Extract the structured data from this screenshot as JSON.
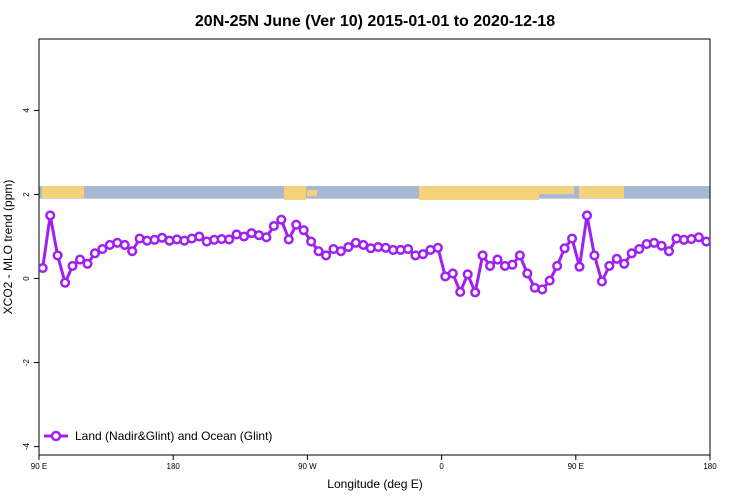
{
  "chart_data": {
    "type": "line",
    "title": "20N-25N June (Ver 10)   2015-01-01 to 2020-12-18",
    "xlabel": "Longitude (deg E)",
    "ylabel": "XCO2 - MLO trend (ppm)",
    "xlim": [
      90,
      450
    ],
    "ylim": [
      -4.2,
      5.7
    ],
    "x_ticks": [
      {
        "value": 90,
        "label": "90 E"
      },
      {
        "value": 162,
        "label": "180"
      },
      {
        "value": 234,
        "label": "90 W"
      },
      {
        "value": 306,
        "label": "0"
      },
      {
        "value": 378,
        "label": "90 E"
      },
      {
        "value": 450,
        "label": "180"
      }
    ],
    "y_ticks": [
      {
        "value": -4,
        "label": "-4"
      },
      {
        "value": -2,
        "label": "-2"
      },
      {
        "value": 0,
        "label": "0"
      },
      {
        "value": 2,
        "label": "2"
      },
      {
        "value": 4,
        "label": "4"
      }
    ],
    "map_band": {
      "ymin": 1.9,
      "ymax": 2.2,
      "ocean_color": "#a7b8d0",
      "land_color": "#f5d27a"
    },
    "legend_position": "bottom-left",
    "series": [
      {
        "name": "Land (Nadir&Glint) and Ocean (Glint)",
        "color": "#a020f0",
        "x": [
          92,
          96,
          100,
          104,
          108,
          112,
          116,
          120,
          124,
          128,
          132,
          136,
          140,
          144,
          148,
          152,
          156,
          160,
          164,
          168,
          172,
          176,
          180,
          184,
          188,
          192,
          196,
          200,
          204,
          208,
          212,
          216,
          220,
          224,
          228,
          232,
          236,
          240,
          244,
          248,
          252,
          256,
          260,
          264,
          268,
          272,
          276,
          280,
          284,
          288,
          292,
          296,
          300,
          304,
          308,
          312,
          316,
          320,
          324,
          328,
          332,
          336,
          340,
          344,
          348,
          352,
          356,
          360,
          364,
          368,
          372,
          376,
          380,
          384,
          388,
          392,
          396,
          400,
          404,
          408,
          412,
          416,
          420,
          424,
          428,
          432,
          436,
          440,
          444,
          448
        ],
        "y": [
          0.25,
          1.5,
          0.55,
          -0.1,
          0.3,
          0.45,
          0.35,
          0.6,
          0.7,
          0.8,
          0.85,
          0.8,
          0.65,
          0.95,
          0.9,
          0.92,
          0.97,
          0.9,
          0.93,
          0.9,
          0.95,
          1.0,
          0.88,
          0.92,
          0.94,
          0.93,
          1.05,
          1.0,
          1.08,
          1.03,
          0.98,
          1.25,
          1.4,
          0.93,
          1.28,
          1.15,
          0.88,
          0.65,
          0.55,
          0.7,
          0.65,
          0.75,
          0.85,
          0.8,
          0.72,
          0.75,
          0.73,
          0.68,
          0.68,
          0.7,
          0.55,
          0.58,
          0.68,
          0.73,
          0.05,
          0.12,
          -0.32,
          0.1,
          -0.33,
          0.55,
          0.3,
          0.45,
          0.3,
          0.33,
          0.55,
          0.12,
          -0.22,
          -0.26,
          -0.05,
          0.3,
          0.72,
          0.95,
          0.28,
          1.5,
          0.55,
          -0.07,
          0.3,
          0.47,
          0.35,
          0.6,
          0.7,
          0.82,
          0.85,
          0.78,
          0.65,
          0.95,
          0.92,
          0.94,
          0.98,
          0.88
        ]
      }
    ]
  }
}
